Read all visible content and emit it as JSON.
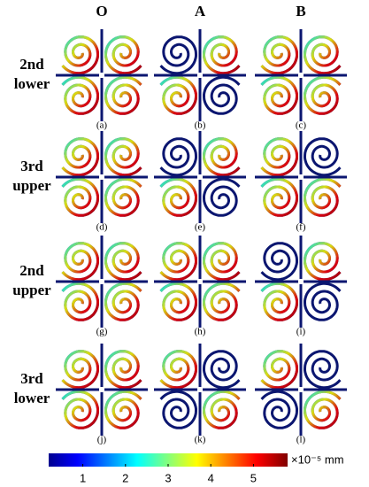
{
  "columns": [
    "O",
    "A",
    "B"
  ],
  "rows": [
    [
      "2nd",
      "lower"
    ],
    [
      "3rd",
      "upper"
    ],
    [
      "2nd",
      "upper"
    ],
    [
      "3rd",
      "lower"
    ]
  ],
  "panels": [
    "(a)",
    "(b)",
    "(c)",
    "(d)",
    "(e)",
    "(f)",
    "(g)",
    "(h)",
    "(i)",
    "(j)",
    "(k)",
    "(l)"
  ],
  "colorbar": {
    "range": [
      0.2,
      5.8
    ],
    "ticks": [
      1,
      2,
      3,
      4,
      5
    ],
    "unit": "×10⁻⁵ mm"
  }
}
